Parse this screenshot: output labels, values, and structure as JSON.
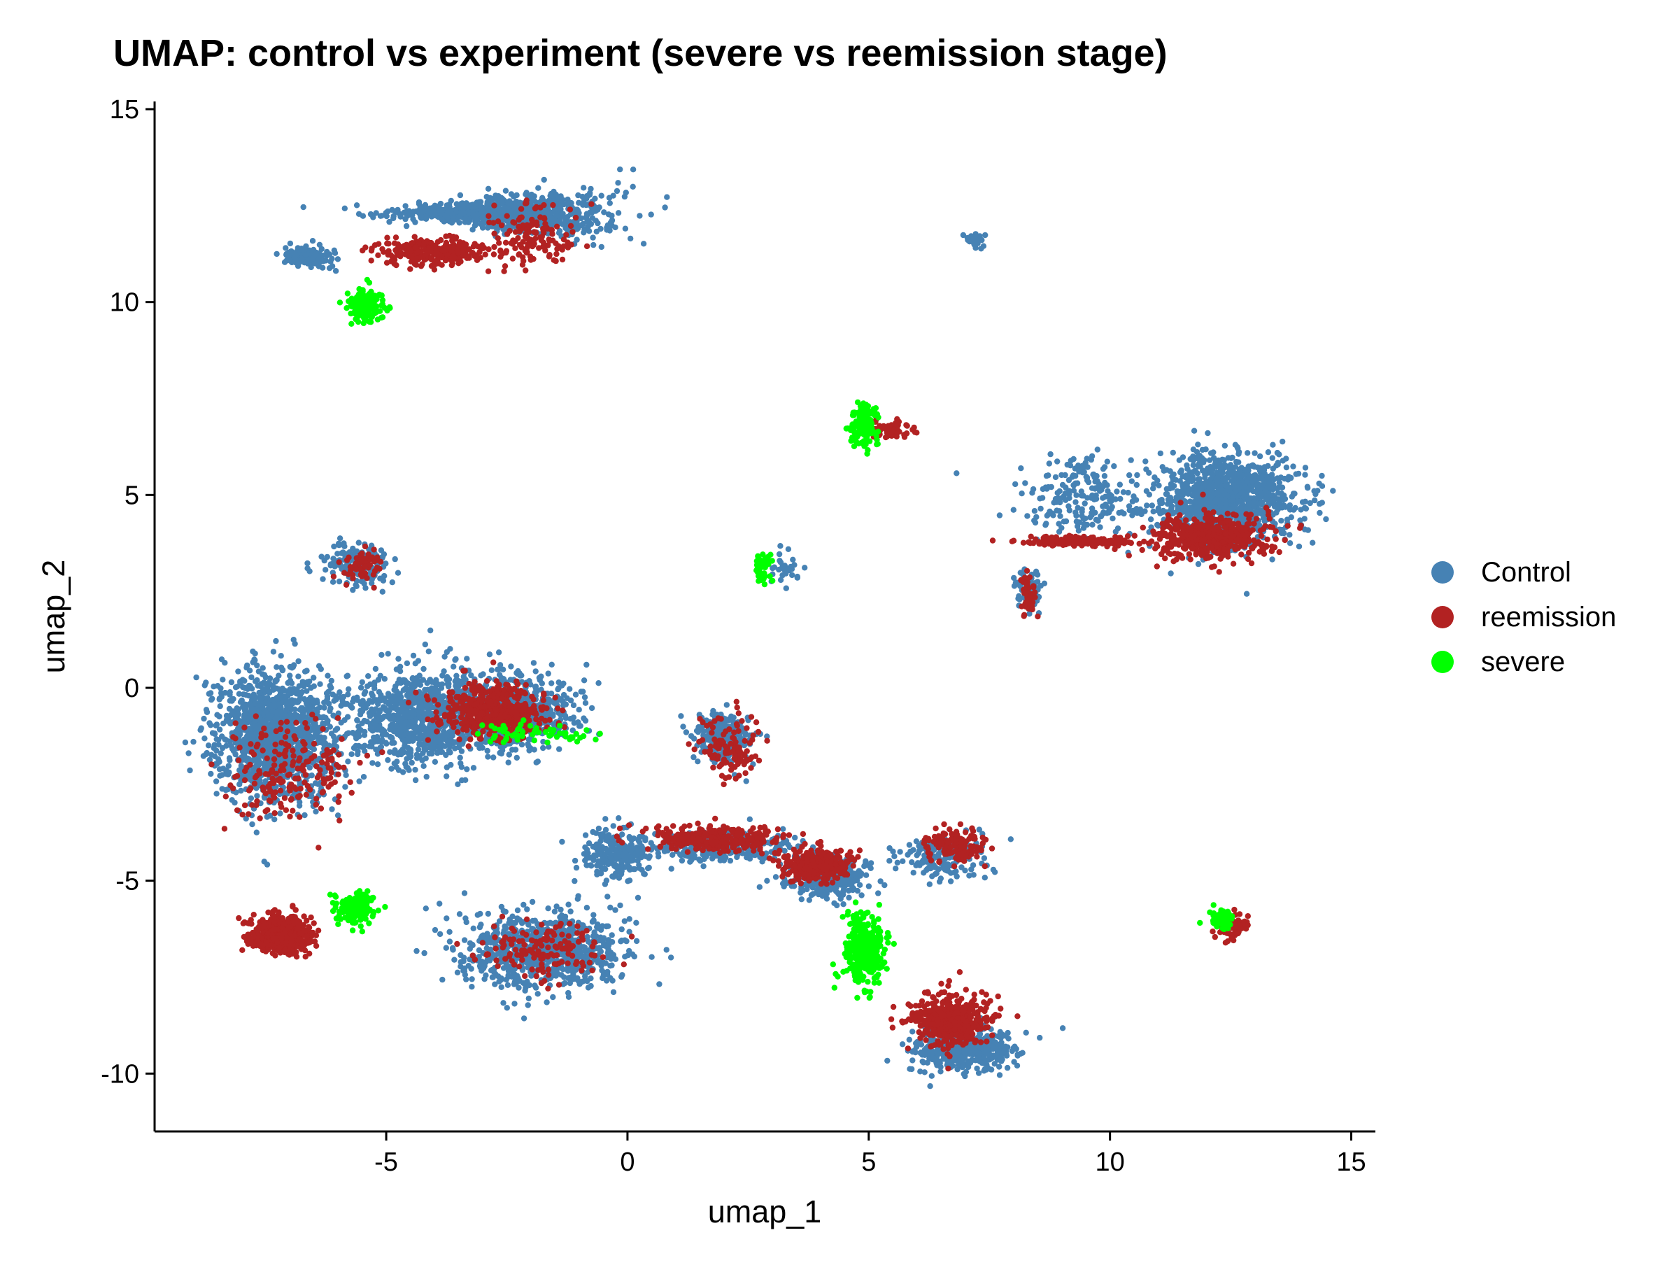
{
  "chart_data": {
    "type": "scatter",
    "title": "UMAP: control vs experiment (severe vs reemission stage)",
    "xlabel": "umap_1",
    "ylabel": "umap_2",
    "xlim": [
      -9.8,
      15.5
    ],
    "ylim": [
      -11.5,
      15.2
    ],
    "xticks": [
      -5,
      0,
      5,
      10,
      15
    ],
    "yticks": [
      -10,
      -5,
      0,
      5,
      10,
      15
    ],
    "grid": false,
    "legend_position": "right",
    "series": [
      {
        "name": "Control",
        "color": "#4682B4",
        "clusters": [
          {
            "center": [
              -2.5,
              12.3
            ],
            "spread": [
              1.6,
              0.8
            ],
            "n": 900,
            "shape": "fan"
          },
          {
            "center": [
              -6.6,
              11.2
            ],
            "spread": [
              0.5,
              0.25
            ],
            "n": 120
          },
          {
            "center": [
              -7.3,
              -1.2
            ],
            "spread": [
              1.1,
              1.5
            ],
            "n": 1400
          },
          {
            "center": [
              -4.3,
              -0.8
            ],
            "spread": [
              1.3,
              1.1
            ],
            "n": 900
          },
          {
            "center": [
              -2.3,
              -0.6
            ],
            "spread": [
              1.1,
              0.9
            ],
            "n": 600
          },
          {
            "center": [
              -5.6,
              3.2
            ],
            "spread": [
              0.6,
              0.5
            ],
            "n": 180
          },
          {
            "center": [
              -1.8,
              -6.8
            ],
            "spread": [
              1.6,
              0.9
            ],
            "n": 800
          },
          {
            "center": [
              -0.2,
              -4.3
            ],
            "spread": [
              0.7,
              0.6
            ],
            "n": 220
          },
          {
            "center": [
              2.0,
              -1.2
            ],
            "spread": [
              0.6,
              0.6
            ],
            "n": 200
          },
          {
            "center": [
              1.9,
              -4.1
            ],
            "spread": [
              1.3,
              0.35
            ],
            "n": 300
          },
          {
            "center": [
              4.2,
              -4.9
            ],
            "spread": [
              0.8,
              0.5
            ],
            "n": 300
          },
          {
            "center": [
              6.5,
              -4.4
            ],
            "spread": [
              0.8,
              0.5
            ],
            "n": 180
          },
          {
            "center": [
              6.9,
              -9.4
            ],
            "spread": [
              1.0,
              0.5
            ],
            "n": 400
          },
          {
            "center": [
              12.4,
              4.9
            ],
            "spread": [
              1.3,
              1.0
            ],
            "n": 1100
          },
          {
            "center": [
              9.4,
              5.0
            ],
            "spread": [
              1.1,
              0.9
            ],
            "n": 200
          },
          {
            "center": [
              8.3,
              2.6
            ],
            "spread": [
              0.25,
              0.5
            ],
            "n": 60
          },
          {
            "center": [
              7.2,
              11.6
            ],
            "spread": [
              0.2,
              0.2
            ],
            "n": 25
          },
          {
            "center": [
              3.3,
              3.1
            ],
            "spread": [
              0.3,
              0.4
            ],
            "n": 30
          }
        ]
      },
      {
        "name": "reemission",
        "color": "#B22222",
        "clusters": [
          {
            "center": [
              -4.0,
              11.3
            ],
            "spread": [
              1.0,
              0.3
            ],
            "n": 260
          },
          {
            "center": [
              -2.0,
              11.7
            ],
            "spread": [
              0.8,
              0.8
            ],
            "n": 140
          },
          {
            "center": [
              -7.2,
              -6.4
            ],
            "spread": [
              0.55,
              0.4
            ],
            "n": 700
          },
          {
            "center": [
              -2.8,
              -0.6
            ],
            "spread": [
              1.0,
              0.6
            ],
            "n": 500
          },
          {
            "center": [
              -5.5,
              3.2
            ],
            "spread": [
              0.4,
              0.4
            ],
            "n": 60
          },
          {
            "center": [
              -7.0,
              -2.2
            ],
            "spread": [
              1.1,
              1.1
            ],
            "n": 200
          },
          {
            "center": [
              -1.8,
              -6.8
            ],
            "spread": [
              1.2,
              0.7
            ],
            "n": 140
          },
          {
            "center": [
              1.8,
              -3.9
            ],
            "spread": [
              1.3,
              0.3
            ],
            "n": 280
          },
          {
            "center": [
              3.9,
              -4.6
            ],
            "spread": [
              0.6,
              0.35
            ],
            "n": 400
          },
          {
            "center": [
              6.7,
              -8.6
            ],
            "spread": [
              0.8,
              0.6
            ],
            "n": 450
          },
          {
            "center": [
              6.8,
              -4.1
            ],
            "spread": [
              0.5,
              0.4
            ],
            "n": 150
          },
          {
            "center": [
              12.1,
              3.9
            ],
            "spread": [
              1.1,
              0.5
            ],
            "n": 500
          },
          {
            "center": [
              9.3,
              3.8
            ],
            "spread": [
              1.0,
              0.12
            ],
            "n": 160
          },
          {
            "center": [
              12.5,
              -6.2
            ],
            "spread": [
              0.4,
              0.3
            ],
            "n": 70
          },
          {
            "center": [
              5.5,
              6.7
            ],
            "spread": [
              0.4,
              0.2
            ],
            "n": 60
          },
          {
            "center": [
              2.1,
              -1.5
            ],
            "spread": [
              0.5,
              0.8
            ],
            "n": 120
          },
          {
            "center": [
              8.3,
              2.4
            ],
            "spread": [
              0.15,
              0.5
            ],
            "n": 50
          }
        ]
      },
      {
        "name": "severe",
        "color": "#00FF00",
        "clusters": [
          {
            "center": [
              -5.4,
              9.9
            ],
            "spread": [
              0.35,
              0.4
            ],
            "n": 160
          },
          {
            "center": [
              -5.6,
              -5.7
            ],
            "spread": [
              0.35,
              0.4
            ],
            "n": 160
          },
          {
            "center": [
              4.9,
              -6.8
            ],
            "spread": [
              0.4,
              0.8
            ],
            "n": 350
          },
          {
            "center": [
              4.9,
              6.8
            ],
            "spread": [
              0.25,
              0.5
            ],
            "n": 140
          },
          {
            "center": [
              2.8,
              3.1
            ],
            "spread": [
              0.2,
              0.4
            ],
            "n": 50
          },
          {
            "center": [
              -2.0,
              -1.2
            ],
            "spread": [
              1.2,
              0.25
            ],
            "n": 60
          },
          {
            "center": [
              12.3,
              -6.0
            ],
            "spread": [
              0.3,
              0.25
            ],
            "n": 60
          }
        ]
      }
    ]
  }
}
